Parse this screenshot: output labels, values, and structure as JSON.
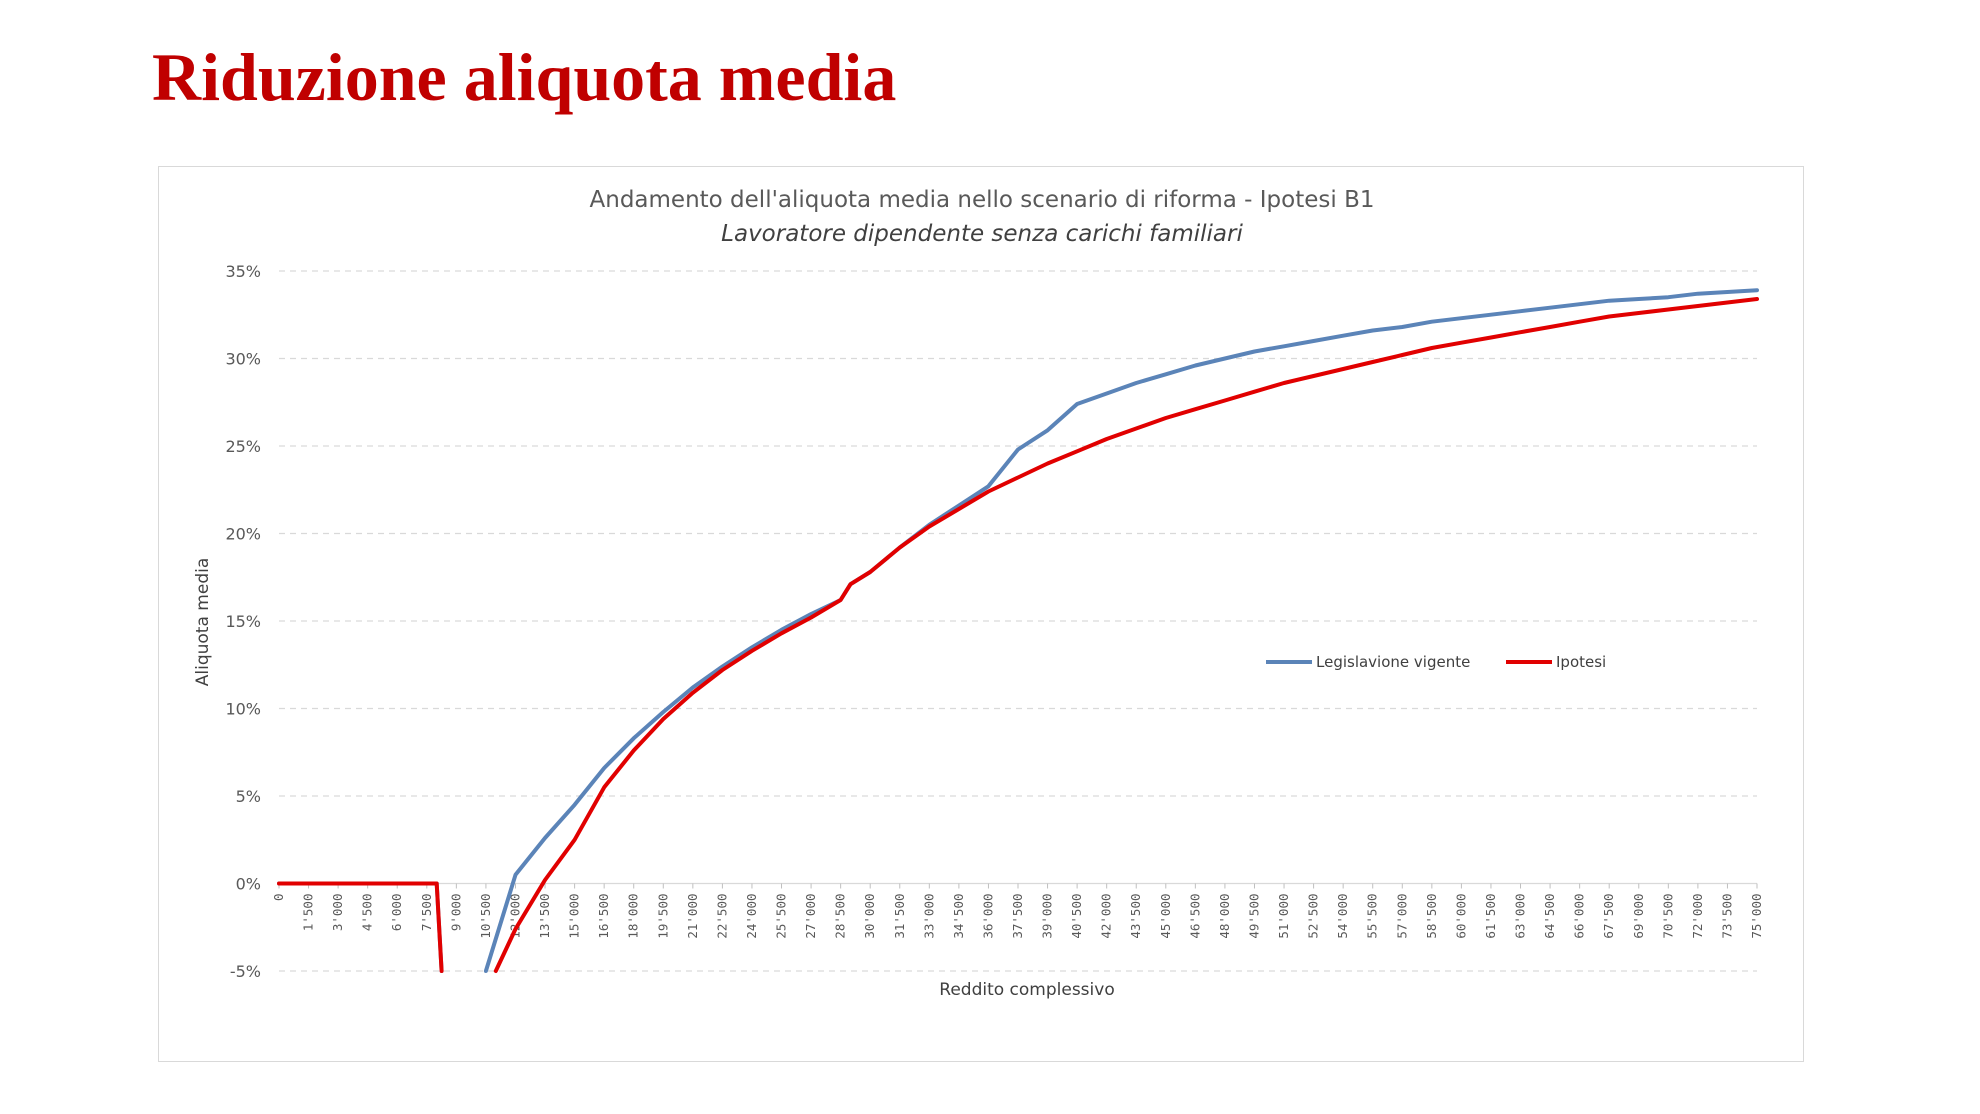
{
  "slide": {
    "title": "Riduzione aliquota media"
  },
  "colors": {
    "title": "#c00000",
    "series_vigente": "#5b84b8",
    "series_ipotesi": "#e10000",
    "grid": "#d9d9d9"
  },
  "chart_data": {
    "type": "line",
    "title": "Andamento dell'aliquota media nello scenario di riforma - Ipotesi B1",
    "subtitle": "Lavoratore dipendente senza carichi familiari",
    "xlabel": "Reddito complessivo",
    "ylabel": "Aliquota media",
    "ylim": [
      -0.05,
      0.35
    ],
    "y_ticks": [
      -0.05,
      0,
      0.05,
      0.1,
      0.15,
      0.2,
      0.25,
      0.3,
      0.35
    ],
    "y_tick_labels": [
      "-5%",
      "0%",
      "5%",
      "10%",
      "15%",
      "20%",
      "25%",
      "30%",
      "35%"
    ],
    "xlim": [
      0,
      75000
    ],
    "x_ticks": [
      0,
      1500,
      3000,
      4500,
      6000,
      7500,
      9000,
      10500,
      12000,
      13500,
      15000,
      16500,
      18000,
      19500,
      21000,
      22500,
      24000,
      25500,
      27000,
      28500,
      30000,
      31500,
      33000,
      34500,
      36000,
      37500,
      39000,
      40500,
      42000,
      43500,
      45000,
      46500,
      48000,
      49500,
      51000,
      52500,
      54000,
      55500,
      57000,
      58500,
      60000,
      61500,
      63000,
      64500,
      66000,
      67500,
      69000,
      70500,
      72000,
      73500,
      75000
    ],
    "x_tick_labels": [
      "0",
      "1'500",
      "3'000",
      "4'500",
      "6'000",
      "7'500",
      "9'000",
      "10'500",
      "12'000",
      "13'500",
      "15'000",
      "16'500",
      "18'000",
      "19'500",
      "21'000",
      "22'500",
      "24'000",
      "25'500",
      "27'000",
      "28'500",
      "30'000",
      "31'500",
      "33'000",
      "34'500",
      "36'000",
      "37'500",
      "39'000",
      "40'500",
      "42'000",
      "43'500",
      "45'000",
      "46'500",
      "48'000",
      "49'500",
      "51'000",
      "52'500",
      "54'000",
      "55'500",
      "57'000",
      "58'500",
      "60'000",
      "61'500",
      "63'000",
      "64'500",
      "66'000",
      "67'500",
      "69'000",
      "70'500",
      "72'000",
      "73'500",
      "75'000"
    ],
    "grid": true,
    "legend_position": "right-middle",
    "series": [
      {
        "name": "Legislavione vigente",
        "color": "#5b84b8",
        "segments": [
          [
            [
              0,
              0
            ],
            [
              7500,
              0
            ],
            [
              8000,
              0
            ],
            [
              8250,
              -0.05
            ]
          ],
          [
            [
              10500,
              -0.05
            ],
            [
              12000,
              0.005
            ],
            [
              13500,
              0.026
            ],
            [
              15000,
              0.045
            ],
            [
              16500,
              0.066
            ],
            [
              18000,
              0.083
            ],
            [
              19500,
              0.098
            ],
            [
              21000,
              0.112
            ],
            [
              22500,
              0.124
            ],
            [
              24000,
              0.135
            ],
            [
              25500,
              0.145
            ],
            [
              27000,
              0.154
            ],
            [
              28500,
              0.162
            ],
            [
              29000,
              0.171
            ],
            [
              30000,
              0.178
            ],
            [
              31500,
              0.192
            ],
            [
              33000,
              0.205
            ],
            [
              34500,
              0.216
            ],
            [
              36000,
              0.227
            ],
            [
              37500,
              0.248
            ],
            [
              39000,
              0.259
            ],
            [
              40500,
              0.274
            ],
            [
              42000,
              0.28
            ],
            [
              43500,
              0.286
            ],
            [
              45000,
              0.291
            ],
            [
              46500,
              0.296
            ],
            [
              48000,
              0.3
            ],
            [
              49500,
              0.304
            ],
            [
              51000,
              0.307
            ],
            [
              52500,
              0.31
            ],
            [
              54000,
              0.313
            ],
            [
              55500,
              0.316
            ],
            [
              57000,
              0.318
            ],
            [
              58500,
              0.321
            ],
            [
              60000,
              0.323
            ],
            [
              61500,
              0.325
            ],
            [
              63000,
              0.327
            ],
            [
              64500,
              0.329
            ],
            [
              66000,
              0.331
            ],
            [
              67500,
              0.333
            ],
            [
              69000,
              0.334
            ],
            [
              70500,
              0.335
            ],
            [
              72000,
              0.337
            ],
            [
              73500,
              0.338
            ],
            [
              75000,
              0.339
            ]
          ]
        ]
      },
      {
        "name": "Ipotesi",
        "color": "#e10000",
        "segments": [
          [
            [
              0,
              0
            ],
            [
              7500,
              0
            ],
            [
              8000,
              0
            ],
            [
              8250,
              -0.05
            ]
          ],
          [
            [
              11000,
              -0.05
            ],
            [
              12000,
              -0.026
            ],
            [
              13500,
              0.002
            ],
            [
              15000,
              0.025
            ],
            [
              16500,
              0.055
            ],
            [
              18000,
              0.076
            ],
            [
              19500,
              0.094
            ],
            [
              21000,
              0.109
            ],
            [
              22500,
              0.122
            ],
            [
              24000,
              0.133
            ],
            [
              25500,
              0.143
            ],
            [
              27000,
              0.152
            ],
            [
              28500,
              0.162
            ],
            [
              29000,
              0.171
            ],
            [
              30000,
              0.178
            ],
            [
              31500,
              0.192
            ],
            [
              33000,
              0.204
            ],
            [
              34500,
              0.214
            ],
            [
              36000,
              0.224
            ],
            [
              37500,
              0.232
            ],
            [
              39000,
              0.24
            ],
            [
              40500,
              0.247
            ],
            [
              42000,
              0.254
            ],
            [
              43500,
              0.26
            ],
            [
              45000,
              0.266
            ],
            [
              46500,
              0.271
            ],
            [
              48000,
              0.276
            ],
            [
              49500,
              0.281
            ],
            [
              51000,
              0.286
            ],
            [
              52500,
              0.29
            ],
            [
              54000,
              0.294
            ],
            [
              55500,
              0.298
            ],
            [
              57000,
              0.302
            ],
            [
              58500,
              0.306
            ],
            [
              60000,
              0.309
            ],
            [
              61500,
              0.312
            ],
            [
              63000,
              0.315
            ],
            [
              64500,
              0.318
            ],
            [
              66000,
              0.321
            ],
            [
              67500,
              0.324
            ],
            [
              69000,
              0.326
            ],
            [
              70500,
              0.328
            ],
            [
              72000,
              0.33
            ],
            [
              73500,
              0.332
            ],
            [
              75000,
              0.334
            ]
          ]
        ]
      }
    ]
  }
}
